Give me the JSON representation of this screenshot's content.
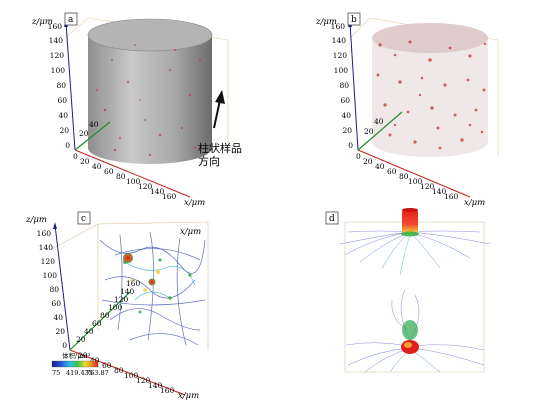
{
  "figure": {
    "panels": [
      {
        "label": "a",
        "z_axis_label": "z/μm",
        "x_axis_label": "x/μm",
        "z_ticks": [
          "0",
          "20",
          "40",
          "60",
          "80",
          "100",
          "120",
          "140",
          "160"
        ],
        "x_ticks": [
          "0",
          "20",
          "40",
          "60",
          "80",
          "100",
          "120",
          "140",
          "160"
        ],
        "depth_ticks": [
          "20",
          "40"
        ],
        "annotation": [
          "柱状样品",
          "方向"
        ]
      },
      {
        "label": "b",
        "z_axis_label": "z/μm",
        "x_axis_label": "x/μm",
        "z_ticks": [
          "0",
          "20",
          "40",
          "60",
          "80",
          "100",
          "120",
          "140",
          "160"
        ],
        "x_ticks": [
          "0",
          "20",
          "40",
          "60",
          "80",
          "100",
          "120",
          "140",
          "160"
        ],
        "depth_ticks": [
          "20",
          "40"
        ]
      },
      {
        "label": "c",
        "z_axis_label": "z/μm",
        "x_axis_label": "x/μm",
        "depth_axis_label": "x/μm",
        "z_ticks": [
          "0",
          "20",
          "40",
          "60",
          "80",
          "100",
          "120",
          "140",
          "160"
        ],
        "x_ticks": [
          "20",
          "40",
          "60",
          "80",
          "100",
          "120",
          "140",
          "160"
        ],
        "depth_ticks": [
          "20",
          "40",
          "60",
          "80",
          "100",
          "120",
          "140",
          "160"
        ],
        "colorbar": {
          "title": "体积/μm³",
          "labels": [
            "75",
            "419.435",
            "763.87"
          ]
        }
      },
      {
        "label": "d"
      }
    ]
  }
}
